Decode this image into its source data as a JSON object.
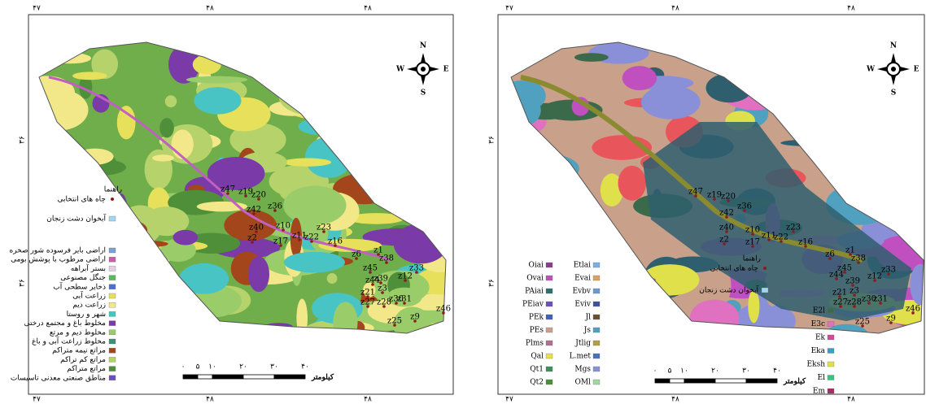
{
  "left_map": {
    "coords_top": [
      "۴۷",
      "۴۸",
      "۴۸"
    ],
    "coords_bottom": [
      "۴۷",
      "۴۸",
      "۴۸"
    ],
    "coords_side": [
      "۳۶",
      "۳۶"
    ],
    "compass": {
      "n": "N",
      "e": "E",
      "s": "S",
      "w": "W"
    },
    "legend_title": "راهنما",
    "legend": [
      {
        "label": "چاه های انتخابی",
        "color": "#8b1a1a"
      },
      {
        "label": "آبخوان دشت زنجان",
        "color": "#9fd8ee"
      },
      {
        "label": "اراضی بایر فرسوده شور صخره",
        "color": "#7aa0d8"
      },
      {
        "label": "اراضی مرطوب با پوشش بومی",
        "color": "#d05aa8"
      },
      {
        "label": "بستر آبراهه",
        "color": "#e5d0e6"
      },
      {
        "label": "جنگل مصنوعی",
        "color": "#5cb85c"
      },
      {
        "label": "ذخایر سطحی آب",
        "color": "#4a6fd0"
      },
      {
        "label": "زراعت آبی",
        "color": "#e7e05a"
      },
      {
        "label": "زراعت دیم",
        "color": "#f2e88a"
      },
      {
        "label": "شهر و روستا",
        "color": "#49c4c4"
      },
      {
        "label": "مخلوط باغ و مجتمع درختی",
        "color": "#7a3aa8"
      },
      {
        "label": "مخلوط دیم و مرتع",
        "color": "#9acd6a"
      },
      {
        "label": "مخلوط زراعت آبی و باغ",
        "color": "#3f8f7a"
      },
      {
        "label": "مراتع نیمه متراکم",
        "color": "#a3461c"
      },
      {
        "label": "مراتع کم تراکم",
        "color": "#b5d36a"
      },
      {
        "label": "مراتع متراکم",
        "color": "#4f8f3a"
      },
      {
        "label": "مناطق صنعتی معدنی تاسیسات",
        "color": "#6a4fc0"
      }
    ],
    "scale": {
      "ticks": [
        "۰",
        "۵",
        "۱۰",
        "۲۰",
        "۳۰",
        "۴۰"
      ],
      "unit": "کیلومتر"
    },
    "wells": [
      "z47",
      "z19",
      "z20",
      "z36",
      "z42",
      "z40",
      "z10",
      "z2",
      "z17",
      "z11",
      "z22",
      "z23",
      "z16",
      "z1",
      "z6",
      "z38",
      "z45",
      "z39",
      "z3",
      "z21",
      "z27",
      "z28",
      "z30",
      "z31",
      "z9",
      "z46",
      "z25",
      "z33",
      "z12",
      "z44"
    ]
  },
  "right_map": {
    "coords_top": [
      "۴۷",
      "۴۸",
      "۴۸"
    ],
    "coords_bottom": [
      "۴۷",
      "۴۸",
      "۴۸"
    ],
    "coords_side": [
      "۳۶",
      "۳۶"
    ],
    "compass": {
      "n": "N",
      "e": "E",
      "s": "S",
      "w": "W"
    },
    "legend_title": "راهنما",
    "legend": [
      {
        "label": "چاه های انتخابی",
        "color": "#8b1a1a"
      },
      {
        "label": "آبخوان دشت زنجان",
        "color": "#9fd8ee"
      }
    ],
    "units_col1": [
      {
        "label": "Oiai",
        "color": "#8a3d8a"
      },
      {
        "label": "Ovai",
        "color": "#c04fc0"
      },
      {
        "label": "PAiai",
        "color": "#2f6e6e"
      },
      {
        "label": "PEiav",
        "color": "#6a4fc0"
      },
      {
        "label": "PEk",
        "color": "#4060c0"
      },
      {
        "label": "PEs",
        "color": "#c9a08a"
      },
      {
        "label": "Plms",
        "color": "#b07090"
      },
      {
        "label": "Qal",
        "color": "#e8e04a"
      },
      {
        "label": "Qt1",
        "color": "#3f8f5a"
      },
      {
        "label": "Qt2",
        "color": "#4a8f3a"
      }
    ],
    "units_col2": [
      {
        "label": "Etlai",
        "color": "#7ab0e0"
      },
      {
        "label": "Evai",
        "color": "#e0a060"
      },
      {
        "label": "Evbv",
        "color": "#6a9ad0"
      },
      {
        "label": "Eviv",
        "color": "#3f4fa0"
      },
      {
        "label": "Jl",
        "color": "#6a5030"
      },
      {
        "label": "Js",
        "color": "#50a0c0"
      },
      {
        "label": "Jtlig",
        "color": "#b0a040"
      },
      {
        "label": "L.met",
        "color": "#4a70c0"
      },
      {
        "label": "Mgs",
        "color": "#8a90d8"
      },
      {
        "label": "OMl",
        "color": "#a0d8a0"
      }
    ],
    "units_col3": [
      {
        "label": "E2l",
        "color": "#3a6a4a"
      },
      {
        "label": "E3c",
        "color": "#e070c0"
      },
      {
        "label": "Ek",
        "color": "#d04a9a"
      },
      {
        "label": "Eka",
        "color": "#3aa0c0"
      },
      {
        "label": "Eksh",
        "color": "#e0e04a"
      },
      {
        "label": "El",
        "color": "#40c080"
      },
      {
        "label": "Em",
        "color": "#a0306a"
      }
    ],
    "scale": {
      "ticks": [
        "۰",
        "۵",
        "۱۰",
        "۲۰",
        "۳۰",
        "۴۰"
      ],
      "unit": "کیلومتر"
    },
    "wells": [
      "z47",
      "z19",
      "z20",
      "z36",
      "z42",
      "z40",
      "z10",
      "z2",
      "z17",
      "z11",
      "z22",
      "z23",
      "z16",
      "z1",
      "z6",
      "z38",
      "z45",
      "z39",
      "z3",
      "z21",
      "z27",
      "z28",
      "z30",
      "z31",
      "z9",
      "z46",
      "z25",
      "z33",
      "z12",
      "z44"
    ]
  }
}
